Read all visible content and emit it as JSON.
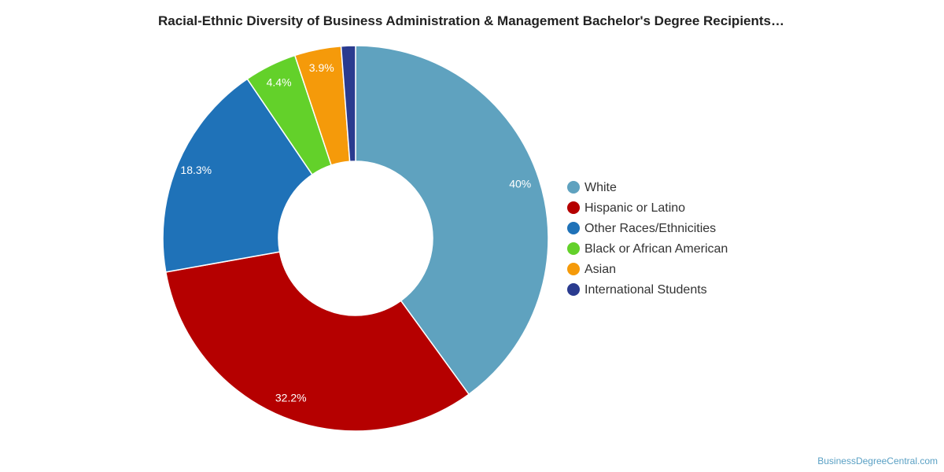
{
  "chart_data": {
    "type": "pie",
    "title": "Racial-Ethnic Diversity of Business Administration & Management Bachelor's Degree Recipients…",
    "labels": [
      "White",
      "Hispanic or Latino",
      "Other Races/Ethnicities",
      "Black or African American",
      "Asian",
      "International Students"
    ],
    "values": [
      40.0,
      32.2,
      18.3,
      4.4,
      3.9,
      1.2
    ],
    "data_labels": [
      "40%",
      "32.2%",
      "18.3%",
      "4.4%",
      "3.9%",
      ""
    ],
    "colors": [
      "#5fa2bf",
      "#b50000",
      "#1f72b8",
      "#63d12a",
      "#f59a0a",
      "#2a3b8f"
    ],
    "donut": true,
    "legend_position": "right"
  },
  "footer": {
    "credit": "BusinessDegreeCentral.com"
  }
}
